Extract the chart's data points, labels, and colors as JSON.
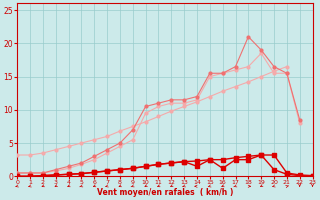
{
  "x": [
    0,
    1,
    2,
    3,
    4,
    5,
    6,
    7,
    8,
    9,
    10,
    11,
    12,
    13,
    14,
    15,
    16,
    17,
    18,
    19,
    20,
    21,
    22,
    23
  ],
  "line_diag": [
    3.2,
    3.2,
    3.5,
    4.0,
    4.5,
    5.0,
    5.5,
    6.0,
    6.8,
    7.5,
    8.2,
    9.0,
    9.8,
    10.5,
    11.2,
    12.0,
    12.8,
    13.5,
    14.2,
    15.0,
    15.8,
    16.5,
    null,
    null
  ],
  "line_peak": [
    0.5,
    0.5,
    0.5,
    1.0,
    1.5,
    2.0,
    3.0,
    4.0,
    5.0,
    7.0,
    10.5,
    11.0,
    11.5,
    11.5,
    12.0,
    15.5,
    15.5,
    16.5,
    21.0,
    19.0,
    16.5,
    15.5,
    8.5,
    null
  ],
  "line_mid": [
    0.5,
    0.5,
    0.5,
    0.8,
    1.2,
    1.8,
    2.5,
    3.5,
    4.5,
    5.5,
    9.5,
    10.5,
    11.0,
    11.0,
    11.5,
    15.0,
    15.5,
    16.0,
    16.5,
    18.5,
    15.5,
    15.5,
    8.0,
    null
  ],
  "line_low1": [
    0.0,
    0.0,
    0.1,
    0.2,
    0.3,
    0.4,
    0.6,
    0.8,
    1.0,
    1.2,
    1.5,
    1.8,
    2.0,
    2.2,
    2.3,
    2.5,
    2.5,
    2.8,
    3.0,
    3.2,
    3.2,
    0.5,
    0.2,
    0.1
  ],
  "line_low2": [
    0.0,
    0.0,
    0.1,
    0.2,
    0.3,
    0.4,
    0.6,
    0.8,
    1.0,
    1.2,
    1.5,
    1.8,
    2.0,
    2.2,
    1.5,
    2.5,
    1.2,
    2.5,
    2.5,
    3.2,
    1.0,
    0.3,
    0.1,
    0.0
  ],
  "color_light": "#f5aaaa",
  "color_mid": "#f07070",
  "color_dark": "#dd0000",
  "bg_color": "#cceaea",
  "grid_color": "#99cccc",
  "xlabel": "Vent moyen/en rafales  ( km/h )",
  "xlim": [
    0,
    23
  ],
  "ylim": [
    0,
    26
  ],
  "yticks": [
    0,
    5,
    10,
    15,
    20,
    25
  ],
  "xticks": [
    0,
    1,
    2,
    3,
    4,
    5,
    6,
    7,
    8,
    9,
    10,
    11,
    12,
    13,
    14,
    15,
    16,
    17,
    18,
    19,
    20,
    21,
    22,
    23
  ]
}
